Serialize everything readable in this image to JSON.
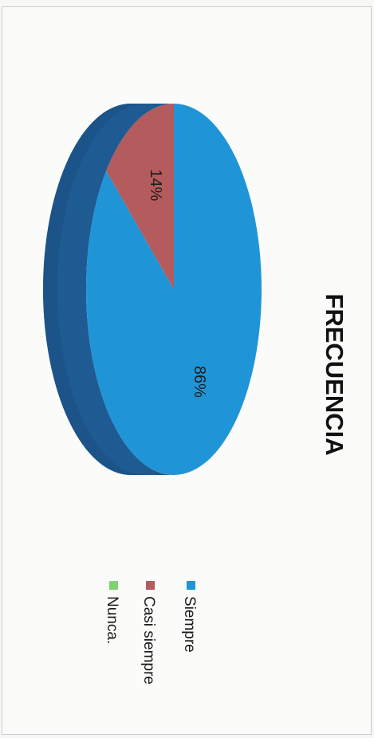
{
  "chart_data": {
    "type": "pie",
    "title": "FRECUENCIA",
    "categories": [
      "Siempre",
      "Casi siempre",
      "Nunca."
    ],
    "values": [
      86,
      14,
      0
    ],
    "data_labels": [
      "86%",
      "14%",
      ""
    ],
    "colors": [
      "#1f95d8",
      "#b35b5d",
      "#7fd36e"
    ],
    "side_color": "#1f5b93",
    "legend_position": "bottom",
    "three_d": true
  }
}
